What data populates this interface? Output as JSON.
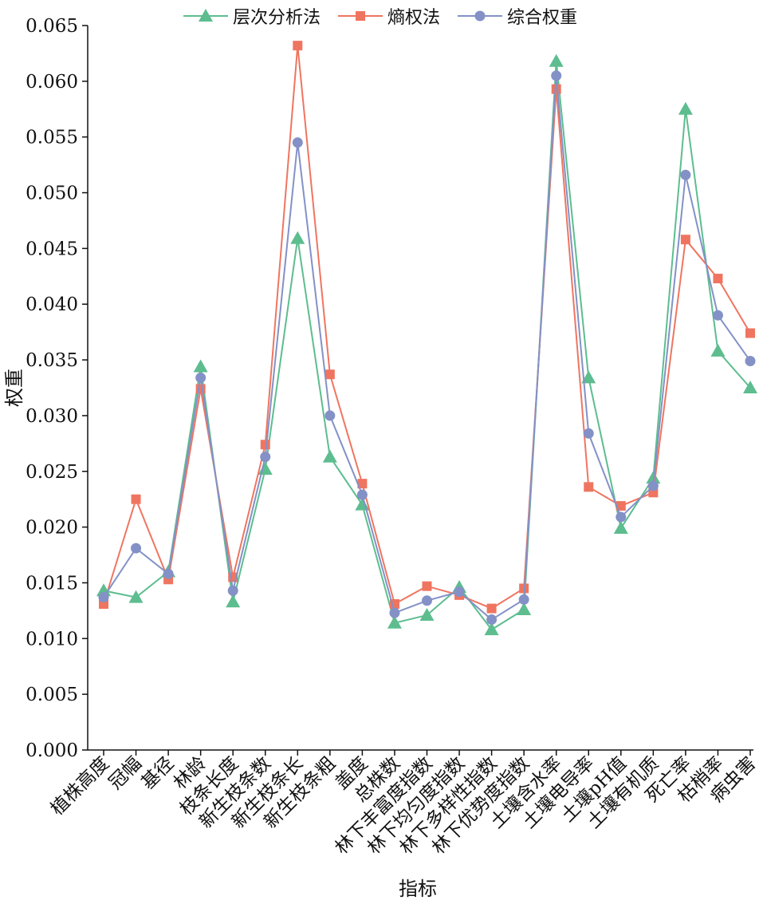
{
  "chart_data": {
    "type": "line",
    "title": "",
    "xlabel": "指标",
    "ylabel": "权重",
    "ylim": [
      0,
      0.065
    ],
    "yticks": [
      "0.000",
      "0.005",
      "0.010",
      "0.015",
      "0.020",
      "0.025",
      "0.030",
      "0.035",
      "0.040",
      "0.045",
      "0.050",
      "0.055",
      "0.060",
      "0.065"
    ],
    "legend_position": "top",
    "grid": false,
    "categories": [
      "植株高度",
      "冠幅",
      "基径",
      "林龄",
      "枝条长度",
      "新生枝条数",
      "新生枝条长",
      "新生枝条粗",
      "盖度",
      "总株数",
      "林下丰富度指数",
      "林下均匀度指数",
      "林下多样性指数",
      "林下优势度指数",
      "土壤含水率",
      "土壤电导率",
      "土壤pH值",
      "土壤有机质",
      "死亡率",
      "枯梢率",
      "病虫害"
    ],
    "series": [
      {
        "name": "层次分析法",
        "color": "#5dbd8f",
        "marker": "triangle",
        "values": [
          0.0143,
          0.0137,
          0.016,
          0.0344,
          0.0133,
          0.0252,
          0.0459,
          0.0263,
          0.022,
          0.0114,
          0.0121,
          0.0146,
          0.0108,
          0.0126,
          0.0618,
          0.0334,
          0.0199,
          0.0244,
          0.0575,
          0.0358,
          0.0325
        ]
      },
      {
        "name": "熵权法",
        "color": "#ef7560",
        "marker": "square",
        "values": [
          0.0131,
          0.0225,
          0.0153,
          0.0324,
          0.0155,
          0.0274,
          0.0632,
          0.0337,
          0.0239,
          0.0131,
          0.0147,
          0.0139,
          0.0127,
          0.0145,
          0.0593,
          0.0236,
          0.0219,
          0.0231,
          0.0458,
          0.0423,
          0.0374
        ]
      },
      {
        "name": "综合权重",
        "color": "#8391c7",
        "marker": "circle",
        "values": [
          0.0137,
          0.0181,
          0.0158,
          0.0334,
          0.0143,
          0.0263,
          0.0545,
          0.03,
          0.0229,
          0.0123,
          0.0134,
          0.0142,
          0.0117,
          0.0135,
          0.0605,
          0.0284,
          0.0209,
          0.0237,
          0.0516,
          0.039,
          0.0349
        ]
      }
    ]
  }
}
